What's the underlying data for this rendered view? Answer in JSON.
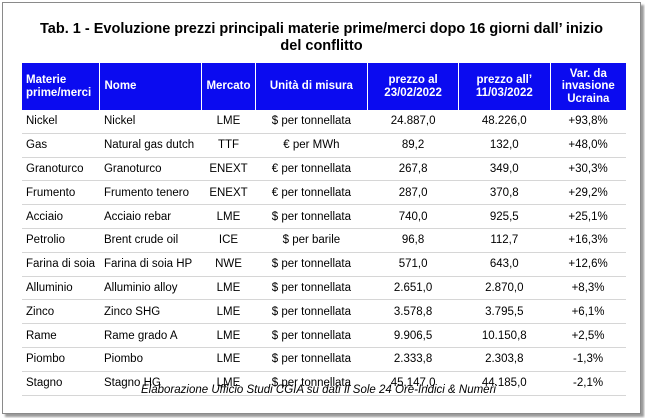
{
  "title_line1": "Tab. 1 - Evoluzione prezzi principali materie prime/merci dopo 16 giorni dall’ inizio",
  "title_line2": "del conflitto",
  "colors": {
    "header_bg": "#0b0bf0",
    "header_text": "#ffffff"
  },
  "headers": {
    "materie_1": "Materie",
    "materie_2": "prime/merci",
    "nome": "Nome",
    "mercato": "Mercato",
    "unita": "Unità di misura",
    "prezzo1_1": "prezzo al",
    "prezzo1_2": "23/02/2022",
    "prezzo2_1": "prezzo all’",
    "prezzo2_2": "11/03/2022",
    "var_1": "Var. da",
    "var_2": "invasione",
    "var_3": "Ucraina"
  },
  "rows": [
    {
      "materia": "Nickel",
      "nome": "Nickel",
      "mercato": "LME",
      "unita": "$ per tonnellata",
      "p1": "24.887,0",
      "p2": "48.226,0",
      "var": "+93,8%"
    },
    {
      "materia": "Gas",
      "nome": "Natural gas dutch",
      "mercato": "TTF",
      "unita": "€ per MWh",
      "p1": "89,2",
      "p2": "132,0",
      "var": "+48,0%"
    },
    {
      "materia": "Granoturco",
      "nome": "Granoturco",
      "mercato": "ENEXT",
      "unita": "€ per tonnellata",
      "p1": "267,8",
      "p2": "349,0",
      "var": "+30,3%"
    },
    {
      "materia": "Frumento",
      "nome": "Frumento tenero",
      "mercato": "ENEXT",
      "unita": "€ per tonnellata",
      "p1": "287,0",
      "p2": "370,8",
      "var": "+29,2%"
    },
    {
      "materia": "Acciaio",
      "nome": "Acciaio rebar",
      "mercato": "LME",
      "unita": "$ per tonnellata",
      "p1": "740,0",
      "p2": "925,5",
      "var": "+25,1%"
    },
    {
      "materia": "Petrolio",
      "nome": "Brent crude oil",
      "mercato": "ICE",
      "unita": "$ per barile",
      "p1": "96,8",
      "p2": "112,7",
      "var": "+16,3%"
    },
    {
      "materia": "Farina di soia",
      "nome": "Farina di soia HP",
      "mercato": "NWE",
      "unita": "$ per tonnellata",
      "p1": "571,0",
      "p2": "643,0",
      "var": "+12,6%"
    },
    {
      "materia": "Alluminio",
      "nome": "Alluminio alloy",
      "mercato": "LME",
      "unita": "$ per tonnellata",
      "p1": "2.651,0",
      "p2": "2.870,0",
      "var": "+8,3%"
    },
    {
      "materia": "Zinco",
      "nome": "Zinco SHG",
      "mercato": "LME",
      "unita": "$ per tonnellata",
      "p1": "3.578,8",
      "p2": "3.795,5",
      "var": "+6,1%"
    },
    {
      "materia": "Rame",
      "nome": "Rame grado A",
      "mercato": "LME",
      "unita": "$ per tonnellata",
      "p1": "9.906,5",
      "p2": "10.150,8",
      "var": "+2,5%"
    },
    {
      "materia": "Piombo",
      "nome": "Piombo",
      "mercato": "LME",
      "unita": "$ per tonnellata",
      "p1": "2.333,8",
      "p2": "2.303,8",
      "var": "-1,3%"
    },
    {
      "materia": "Stagno",
      "nome": "Stagno HG",
      "mercato": "LME",
      "unita": "$ per tonnellata",
      "p1": "45.147,0",
      "p2": "44.185,0",
      "var": "-2,1%"
    }
  ],
  "footer": "Elaborazione Ufficio Studi CGIA su dati Il Sole 24 Ore-Indici & Numeri"
}
